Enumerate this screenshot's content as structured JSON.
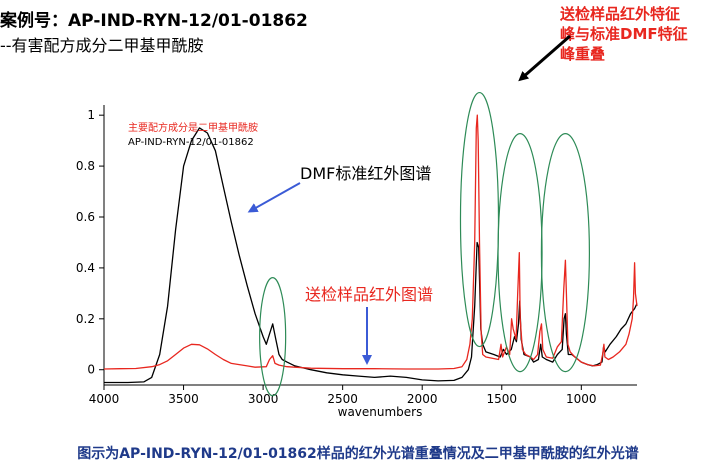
{
  "header": {
    "case_number": "案例号：AP-IND-RYN-12/01-01862",
    "subtitle": "--有害配方成分二甲基甲酰胺"
  },
  "overlap_note": {
    "lines": [
      "送检样品红外特征",
      "峰与标准DMF特征",
      "峰重叠"
    ]
  },
  "caption": "图示为AP-IND-RYN-12/01-01862样品的红外光谱重叠情况及二甲基甲酰胺的红外光谱",
  "colors": {
    "standard": "#000000",
    "sample": "#e8271f",
    "ellipse": "#2e8b57",
    "arrow_blue": "#3b5bd6",
    "caption": "#1f3a8a"
  },
  "chart_data": {
    "type": "line",
    "xlabel": "wavenumbers",
    "ylabel": "",
    "xlim": [
      4000,
      650
    ],
    "ylim": [
      -0.06,
      1.04
    ],
    "x_ticks": [
      4000,
      3500,
      3000,
      2500,
      2000,
      1500,
      1000
    ],
    "y_ticks": [
      0,
      0.2,
      0.4,
      0.6,
      0.8,
      1
    ],
    "y_tick_labels": [
      "0",
      "0.2",
      "0.4",
      "0.6",
      "0.8",
      "1"
    ],
    "legend": [
      "主要配方成分是二甲基甲酰胺",
      "AP-IND-RYN-12/01-01862"
    ],
    "annotations": {
      "standard_label": "DMF标准红外图谱",
      "sample_label": "送检样品红外图谱"
    },
    "series": [
      {
        "name": "AP-IND-RYN-12/01-01862",
        "color": "#000000",
        "points": [
          [
            4000,
            -0.05
          ],
          [
            3850,
            -0.05
          ],
          [
            3750,
            -0.048
          ],
          [
            3700,
            -0.03
          ],
          [
            3650,
            0.06
          ],
          [
            3600,
            0.25
          ],
          [
            3550,
            0.55
          ],
          [
            3500,
            0.8
          ],
          [
            3450,
            0.9
          ],
          [
            3400,
            0.95
          ],
          [
            3350,
            0.93
          ],
          [
            3300,
            0.86
          ],
          [
            3250,
            0.72
          ],
          [
            3200,
            0.58
          ],
          [
            3150,
            0.45
          ],
          [
            3100,
            0.33
          ],
          [
            3050,
            0.22
          ],
          [
            3000,
            0.13
          ],
          [
            2980,
            0.1
          ],
          [
            2960,
            0.14
          ],
          [
            2940,
            0.18
          ],
          [
            2920,
            0.12
          ],
          [
            2900,
            0.06
          ],
          [
            2880,
            0.04
          ],
          [
            2850,
            0.03
          ],
          [
            2800,
            0.015
          ],
          [
            2700,
            0.0
          ],
          [
            2600,
            -0.012
          ],
          [
            2500,
            -0.02
          ],
          [
            2400,
            -0.025
          ],
          [
            2300,
            -0.03
          ],
          [
            2200,
            -0.025
          ],
          [
            2100,
            -0.03
          ],
          [
            2000,
            -0.04
          ],
          [
            1900,
            -0.044
          ],
          [
            1800,
            -0.042
          ],
          [
            1750,
            -0.03
          ],
          [
            1710,
            0.0
          ],
          [
            1690,
            0.05
          ],
          [
            1670,
            0.25
          ],
          [
            1655,
            0.5
          ],
          [
            1645,
            0.48
          ],
          [
            1632,
            0.16
          ],
          [
            1620,
            0.1
          ],
          [
            1600,
            0.07
          ],
          [
            1550,
            0.06
          ],
          [
            1510,
            0.05
          ],
          [
            1490,
            0.08
          ],
          [
            1470,
            0.06
          ],
          [
            1440,
            0.08
          ],
          [
            1420,
            0.13
          ],
          [
            1408,
            0.11
          ],
          [
            1395,
            0.18
          ],
          [
            1387,
            0.27
          ],
          [
            1378,
            0.12
          ],
          [
            1360,
            0.06
          ],
          [
            1320,
            0.05
          ],
          [
            1300,
            0.03
          ],
          [
            1270,
            0.04
          ],
          [
            1255,
            0.1
          ],
          [
            1245,
            0.05
          ],
          [
            1220,
            0.04
          ],
          [
            1180,
            0.03
          ],
          [
            1150,
            0.06
          ],
          [
            1120,
            0.08
          ],
          [
            1108,
            0.2
          ],
          [
            1100,
            0.22
          ],
          [
            1094,
            0.14
          ],
          [
            1082,
            0.06
          ],
          [
            1060,
            0.06
          ],
          [
            1020,
            0.04
          ],
          [
            1000,
            0.03
          ],
          [
            960,
            0.02
          ],
          [
            930,
            0.015
          ],
          [
            900,
            0.02
          ],
          [
            870,
            0.03
          ],
          [
            860,
            0.09
          ],
          [
            850,
            0.07
          ],
          [
            820,
            0.1
          ],
          [
            780,
            0.13
          ],
          [
            750,
            0.16
          ],
          [
            720,
            0.18
          ],
          [
            690,
            0.22
          ],
          [
            665,
            0.24
          ],
          [
            650,
            0.26
          ]
        ]
      },
      {
        "name": "主要配方成分是二甲基甲酰胺",
        "color": "#e8271f",
        "points": [
          [
            4000,
            0.003
          ],
          [
            3900,
            0.004
          ],
          [
            3800,
            0.005
          ],
          [
            3700,
            0.012
          ],
          [
            3650,
            0.02
          ],
          [
            3600,
            0.035
          ],
          [
            3550,
            0.06
          ],
          [
            3500,
            0.085
          ],
          [
            3450,
            0.1
          ],
          [
            3400,
            0.098
          ],
          [
            3350,
            0.082
          ],
          [
            3300,
            0.06
          ],
          [
            3250,
            0.04
          ],
          [
            3200,
            0.025
          ],
          [
            3100,
            0.015
          ],
          [
            3050,
            0.01
          ],
          [
            2980,
            0.012
          ],
          [
            2960,
            0.04
          ],
          [
            2940,
            0.055
          ],
          [
            2925,
            0.025
          ],
          [
            2900,
            0.018
          ],
          [
            2850,
            0.012
          ],
          [
            2700,
            0.006
          ],
          [
            2500,
            0.004
          ],
          [
            2300,
            0.004
          ],
          [
            2100,
            0.003
          ],
          [
            1900,
            0.003
          ],
          [
            1800,
            0.005
          ],
          [
            1750,
            0.012
          ],
          [
            1720,
            0.04
          ],
          [
            1700,
            0.1
          ],
          [
            1685,
            0.2
          ],
          [
            1670,
            0.5
          ],
          [
            1660,
            0.95
          ],
          [
            1654,
            1.0
          ],
          [
            1648,
            0.9
          ],
          [
            1640,
            0.5
          ],
          [
            1630,
            0.15
          ],
          [
            1620,
            0.06
          ],
          [
            1600,
            0.05
          ],
          [
            1560,
            0.045
          ],
          [
            1520,
            0.04
          ],
          [
            1505,
            0.1
          ],
          [
            1495,
            0.05
          ],
          [
            1470,
            0.09
          ],
          [
            1450,
            0.06
          ],
          [
            1438,
            0.2
          ],
          [
            1428,
            0.16
          ],
          [
            1410,
            0.12
          ],
          [
            1400,
            0.3
          ],
          [
            1390,
            0.46
          ],
          [
            1384,
            0.2
          ],
          [
            1370,
            0.08
          ],
          [
            1350,
            0.06
          ],
          [
            1320,
            0.05
          ],
          [
            1300,
            0.04
          ],
          [
            1275,
            0.06
          ],
          [
            1260,
            0.15
          ],
          [
            1250,
            0.18
          ],
          [
            1242,
            0.08
          ],
          [
            1220,
            0.05
          ],
          [
            1180,
            0.045
          ],
          [
            1150,
            0.09
          ],
          [
            1125,
            0.11
          ],
          [
            1110,
            0.32
          ],
          [
            1100,
            0.43
          ],
          [
            1094,
            0.3
          ],
          [
            1084,
            0.1
          ],
          [
            1070,
            0.07
          ],
          [
            1040,
            0.05
          ],
          [
            1000,
            0.03
          ],
          [
            960,
            0.02
          ],
          [
            920,
            0.015
          ],
          [
            880,
            0.018
          ],
          [
            866,
            0.06
          ],
          [
            858,
            0.1
          ],
          [
            852,
            0.05
          ],
          [
            830,
            0.04
          ],
          [
            800,
            0.05
          ],
          [
            760,
            0.07
          ],
          [
            720,
            0.1
          ],
          [
            700,
            0.14
          ],
          [
            680,
            0.2
          ],
          [
            672,
            0.28
          ],
          [
            665,
            0.42
          ],
          [
            660,
            0.3
          ],
          [
            650,
            0.25
          ]
        ]
      }
    ]
  }
}
